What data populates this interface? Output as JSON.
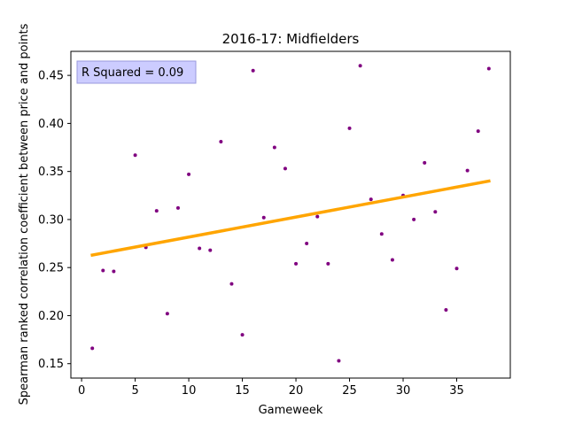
{
  "chart_data": {
    "type": "scatter",
    "title": "2016-17: Midfielders",
    "xlabel": "Gameweek",
    "ylabel": "Spearman ranked correlation coefficient between price and points",
    "xlim": [
      -1,
      40
    ],
    "ylim": [
      0.135,
      0.475
    ],
    "xticks": [
      0,
      5,
      10,
      15,
      20,
      25,
      30,
      35
    ],
    "xtick_labels": [
      "0",
      "5",
      "10",
      "15",
      "20",
      "25",
      "30",
      "35"
    ],
    "yticks": [
      0.15,
      0.2,
      0.25,
      0.3,
      0.35,
      0.4,
      0.45
    ],
    "ytick_labels": [
      "0.15",
      "0.20",
      "0.25",
      "0.30",
      "0.35",
      "0.40",
      "0.45"
    ],
    "grid": false,
    "annotation": "R Squared = 0.09",
    "annotation_position": "top-left",
    "colors": {
      "points": "#800080",
      "trend": "#ffa500",
      "annotation_face": "#ccccff",
      "annotation_edge": "#9999dd"
    },
    "points": [
      {
        "x": 1,
        "y": 0.166
      },
      {
        "x": 2,
        "y": 0.247
      },
      {
        "x": 3,
        "y": 0.246
      },
      {
        "x": 5,
        "y": 0.367
      },
      {
        "x": 6,
        "y": 0.271
      },
      {
        "x": 7,
        "y": 0.309
      },
      {
        "x": 8,
        "y": 0.202
      },
      {
        "x": 9,
        "y": 0.312
      },
      {
        "x": 10,
        "y": 0.347
      },
      {
        "x": 11,
        "y": 0.27
      },
      {
        "x": 12,
        "y": 0.268
      },
      {
        "x": 13,
        "y": 0.381
      },
      {
        "x": 14,
        "y": 0.233
      },
      {
        "x": 15,
        "y": 0.18
      },
      {
        "x": 16,
        "y": 0.455
      },
      {
        "x": 17,
        "y": 0.302
      },
      {
        "x": 18,
        "y": 0.375
      },
      {
        "x": 19,
        "y": 0.353
      },
      {
        "x": 20,
        "y": 0.254
      },
      {
        "x": 21,
        "y": 0.275
      },
      {
        "x": 22,
        "y": 0.303
      },
      {
        "x": 23,
        "y": 0.254
      },
      {
        "x": 24,
        "y": 0.153
      },
      {
        "x": 25,
        "y": 0.395
      },
      {
        "x": 26,
        "y": 0.46
      },
      {
        "x": 27,
        "y": 0.321
      },
      {
        "x": 28,
        "y": 0.285
      },
      {
        "x": 29,
        "y": 0.258
      },
      {
        "x": 30,
        "y": 0.325
      },
      {
        "x": 31,
        "y": 0.3
      },
      {
        "x": 32,
        "y": 0.359
      },
      {
        "x": 33,
        "y": 0.308
      },
      {
        "x": 34,
        "y": 0.206
      },
      {
        "x": 35,
        "y": 0.249
      },
      {
        "x": 36,
        "y": 0.351
      },
      {
        "x": 37,
        "y": 0.392
      },
      {
        "x": 38,
        "y": 0.457
      }
    ],
    "trend_line": {
      "x": [
        1,
        38
      ],
      "y": [
        0.263,
        0.34
      ]
    }
  }
}
